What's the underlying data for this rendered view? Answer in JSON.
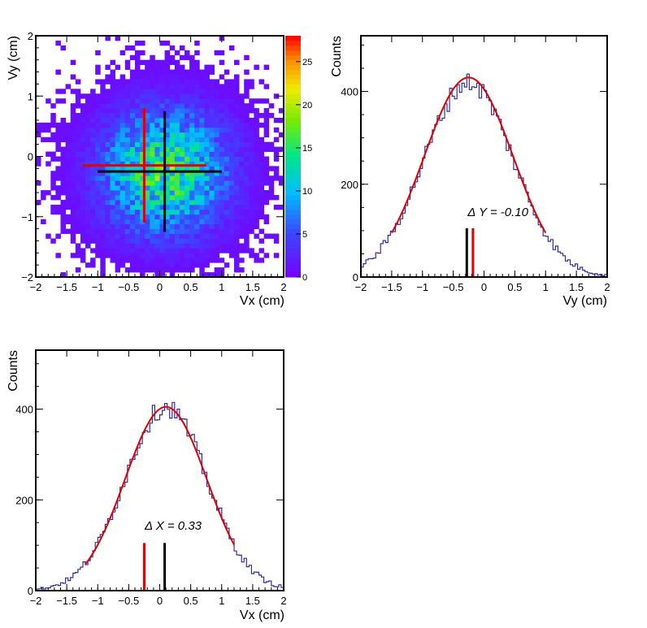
{
  "chart_data": [
    {
      "id": "vertex-2d",
      "type": "heatmap",
      "xlabel": "Vx (cm)",
      "ylabel": "Vy (cm)",
      "xlim": [
        -2,
        2
      ],
      "ylim": [
        -2,
        2
      ],
      "x_ticks": [
        "−2",
        "−1.5",
        "−1",
        "−0.5",
        "0",
        "0.5",
        "1",
        "1.5",
        "2"
      ],
      "y_ticks": [
        "−2",
        "−1",
        "0",
        "1",
        "2"
      ],
      "bins": 50,
      "center_x": 0.08,
      "center_y": -0.25,
      "sigma": 0.72,
      "peak": 26,
      "zlim": [
        0,
        28
      ],
      "colorbar_ticks": [
        "0",
        "5",
        "10",
        "15",
        "20",
        "25"
      ],
      "crosses": [
        {
          "color": "#e00000",
          "x": -0.25,
          "y": -0.15,
          "x_range": [
            -1.25,
            0.75
          ],
          "y_range": [
            -1.1,
            0.8
          ]
        },
        {
          "color": "#000000",
          "x": 0.08,
          "y": -0.25,
          "x_range": [
            -1.0,
            1.0
          ],
          "y_range": [
            -1.25,
            0.75
          ]
        }
      ]
    },
    {
      "id": "vy-hist",
      "type": "line",
      "xlabel": "Vy (cm)",
      "ylabel": "Counts",
      "xlim": [
        -2,
        2
      ],
      "ylim": [
        0,
        520
      ],
      "x_ticks": [
        "−2",
        "−1.5",
        "−1",
        "−0.5",
        "0",
        "0.5",
        "1",
        "1.5",
        "2"
      ],
      "y_ticks": [
        "0",
        "200",
        "400"
      ],
      "hist_center": -0.25,
      "hist_sigma": 0.72,
      "hist_amp": 415,
      "fit": {
        "amp": 430,
        "mean": -0.25,
        "sigma": 0.72,
        "range": [
          -1.5,
          1.0
        ]
      },
      "annotation": "Δ Y = -0.10",
      "markers": [
        {
          "color": "#000000",
          "x": -0.28,
          "height": 105
        },
        {
          "color": "#e00000",
          "x": -0.18,
          "height": 105
        }
      ]
    },
    {
      "id": "vx-hist",
      "type": "line",
      "xlabel": "Vx (cm)",
      "ylabel": "Counts",
      "xlim": [
        -2,
        2
      ],
      "ylim": [
        0,
        530
      ],
      "x_ticks": [
        "−2",
        "−1.5",
        "−1",
        "−0.5",
        "0",
        "0.5",
        "1",
        "1.5",
        "2"
      ],
      "y_ticks": [
        "0",
        "200",
        "400"
      ],
      "hist_center": 0.1,
      "hist_sigma": 0.66,
      "hist_amp": 400,
      "fit": {
        "amp": 405,
        "mean": 0.1,
        "sigma": 0.66,
        "range": [
          -1.2,
          1.2
        ]
      },
      "annotation": "Δ X = 0.33",
      "markers": [
        {
          "color": "#e00000",
          "x": -0.25,
          "height": 105
        },
        {
          "color": "#000000",
          "x": 0.08,
          "height": 105
        }
      ]
    }
  ]
}
